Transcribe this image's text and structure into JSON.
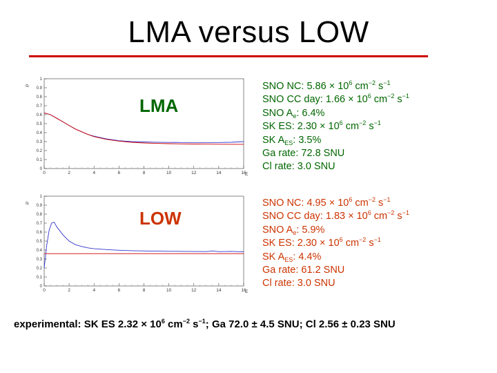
{
  "title": "LMA versus LOW",
  "lma_panel": {
    "label": "LMA",
    "lines": [
      {
        "pre": "SNO NC: 5.86 × 10",
        "sup": "6",
        "post": " cm",
        "sup2": "−2",
        "post2": " s",
        "sup3": "−1"
      },
      {
        "pre": "SNO CC day: 1.66 × 10",
        "sup": "6",
        "post": " cm",
        "sup2": "−2",
        "post2": " s",
        "sup3": "−1"
      },
      {
        "pre": "SNO A",
        "sub": "e",
        "post": ": 6.4%"
      },
      {
        "pre": "SK ES: 2.30 × 10",
        "sup": "6",
        "post": " cm",
        "sup2": "−2",
        "post2": " s",
        "sup3": "−1"
      },
      {
        "pre": "SK A",
        "sub": "ES",
        "post": ": 3.5%"
      },
      {
        "pre": "Ga rate: 72.8 SNU"
      },
      {
        "pre": "Cl rate: 3.0 SNU"
      }
    ]
  },
  "low_panel": {
    "label": "LOW",
    "lines": [
      {
        "pre": "SNO NC: 4.95 × 10",
        "sup": "6",
        "post": " cm",
        "sup2": "−2",
        "post2": " s",
        "sup3": "−1"
      },
      {
        "pre": "SNO CC day: 1.83 × 10",
        "sup": "6",
        "post": " cm",
        "sup2": "−2",
        "post2": " s",
        "sup3": "−1"
      },
      {
        "pre": "SNO A",
        "sub": "e",
        "post": ": 5.9%"
      },
      {
        "pre": "SK ES: 2.30 × 10",
        "sup": "6",
        "post": " cm",
        "sup2": "−2",
        "post2": " s",
        "sup3": "−1"
      },
      {
        "pre": "SK A",
        "sub": "ES",
        "post": ": 4.4%"
      },
      {
        "pre": "Ga rate: 61.2 SNU"
      },
      {
        "pre": "Cl rate: 3.0 SNU"
      }
    ]
  },
  "footer": {
    "pre": "experimental: SK ES 2.32 × 10",
    "sup": "6",
    "mid": " cm",
    "sup2": "−2",
    "mid2": " s",
    "sup3": "−1",
    "post": "; Ga 72.0 ± 4.5 SNU; Cl 2.56 ± 0.23 SNU"
  },
  "colors": {
    "title_rule": "#cc0000",
    "lma_text": "#006600",
    "low_text": "#cc3300",
    "curve_blue": "#3333cc",
    "curve_red": "#cc0000"
  },
  "chart_data": [
    {
      "type": "line",
      "panel": "LMA",
      "xlim": [
        0,
        16
      ],
      "ylim": [
        0,
        1
      ],
      "xticks": [
        "0",
        "2",
        "4",
        "6",
        "8",
        "10",
        "12",
        "14",
        "16"
      ],
      "yticks": [
        "0",
        "0.1",
        "0.2",
        "0.3",
        "0.4",
        "0.5",
        "0.6",
        "0.7",
        "0.8",
        "0.9",
        "1"
      ],
      "xlabel": "E",
      "ylabel": "P",
      "series": [
        {
          "color": "#3333cc",
          "x": [
            0,
            0.5,
            1,
            1.5,
            2,
            2.5,
            3,
            3.5,
            4,
            5,
            6,
            7,
            8,
            9,
            10,
            11,
            12,
            13,
            14,
            15,
            16
          ],
          "y": [
            0.62,
            0.6,
            0.56,
            0.52,
            0.48,
            0.44,
            0.41,
            0.38,
            0.36,
            0.33,
            0.31,
            0.3,
            0.296,
            0.293,
            0.291,
            0.29,
            0.29,
            0.29,
            0.29,
            0.292,
            0.3
          ]
        },
        {
          "color": "#cc0000",
          "x": [
            0,
            0.5,
            1,
            1.5,
            2,
            2.5,
            3,
            3.5,
            4,
            5,
            6,
            7,
            8,
            9,
            10,
            11,
            12,
            13,
            14,
            15,
            16
          ],
          "y": [
            0.62,
            0.6,
            0.56,
            0.52,
            0.48,
            0.44,
            0.41,
            0.38,
            0.355,
            0.325,
            0.305,
            0.292,
            0.285,
            0.28,
            0.277,
            0.275,
            0.273,
            0.272,
            0.271,
            0.27,
            0.27
          ]
        }
      ]
    },
    {
      "type": "line",
      "panel": "LOW",
      "xlim": [
        0,
        16
      ],
      "ylim": [
        0,
        1
      ],
      "xticks": [
        "0",
        "2",
        "4",
        "6",
        "8",
        "10",
        "12",
        "14",
        "16"
      ],
      "yticks": [
        "0",
        "0.1",
        "0.2",
        "0.3",
        "0.4",
        "0.5",
        "0.6",
        "0.7",
        "0.8",
        "0.9",
        "1"
      ],
      "xlabel": "E",
      "ylabel": "P",
      "series": [
        {
          "color": "#3333cc",
          "x": [
            0,
            0.2,
            0.4,
            0.6,
            0.8,
            1,
            1.5,
            2,
            2.5,
            3,
            3.5,
            4,
            5,
            6,
            7,
            8,
            9,
            10,
            11,
            12,
            13,
            13.5,
            14,
            15,
            16
          ],
          "y": [
            0.2,
            0.45,
            0.62,
            0.7,
            0.71,
            0.66,
            0.57,
            0.5,
            0.46,
            0.44,
            0.425,
            0.415,
            0.405,
            0.398,
            0.393,
            0.39,
            0.388,
            0.386,
            0.385,
            0.384,
            0.383,
            0.39,
            0.382,
            0.385,
            0.38
          ]
        },
        {
          "color": "#cc0000",
          "x": [
            0,
            16
          ],
          "y": [
            0.36,
            0.36
          ]
        }
      ]
    }
  ]
}
